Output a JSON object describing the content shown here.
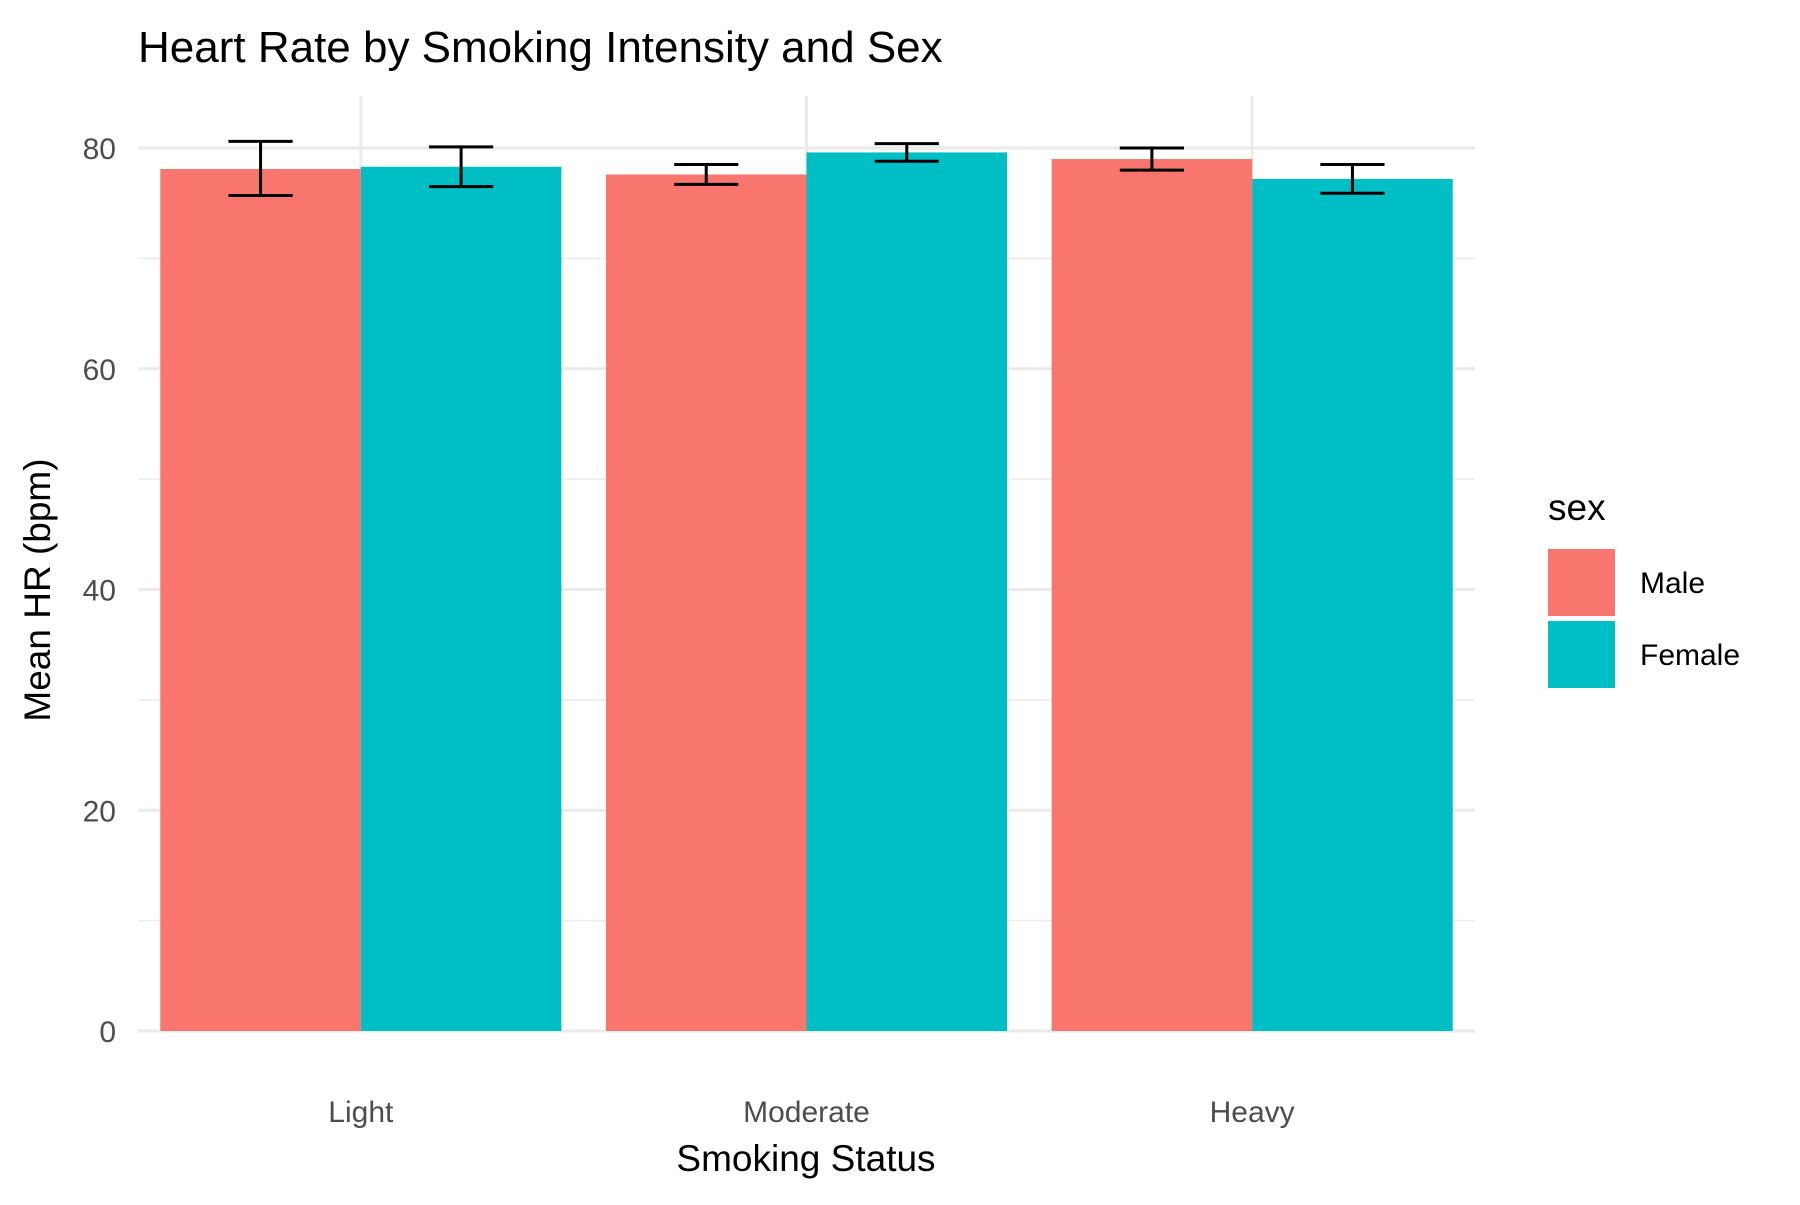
{
  "chart_data": {
    "type": "bar",
    "title": "Heart Rate by Smoking Intensity and Sex",
    "xlabel": "Smoking Status",
    "ylabel": "Mean HR (bpm)",
    "categories": [
      "Light",
      "Moderate",
      "Heavy"
    ],
    "ylim": [
      0,
      84
    ],
    "yticks": [
      0,
      20,
      40,
      60,
      80
    ],
    "grid": true,
    "legend": {
      "title": "sex",
      "placement": "right"
    },
    "series": [
      {
        "name": "Male",
        "color": "#F8766D",
        "values": [
          78.1,
          77.6,
          79.0
        ],
        "error_low": [
          75.7,
          76.7,
          78.0
        ],
        "error_high": [
          80.6,
          78.5,
          80.0
        ]
      },
      {
        "name": "Female",
        "color": "#00BFC4",
        "values": [
          78.3,
          79.6,
          77.2
        ],
        "error_low": [
          76.5,
          78.8,
          75.9
        ],
        "error_high": [
          80.1,
          80.4,
          78.5
        ]
      }
    ]
  }
}
